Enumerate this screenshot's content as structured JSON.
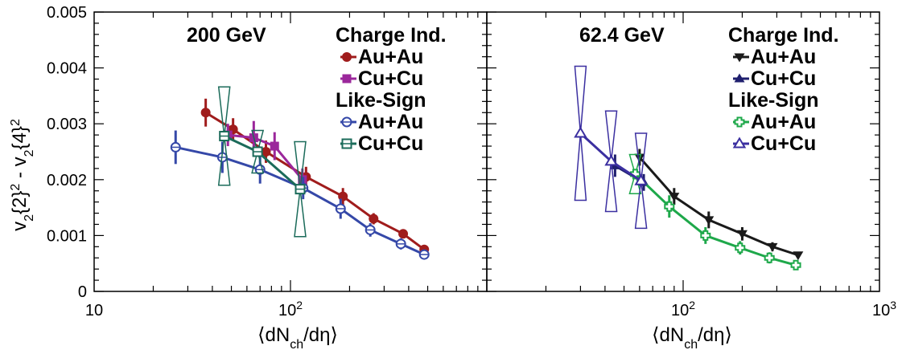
{
  "figure": {
    "ylabel": "v2{2}^2 - v2{4}^2",
    "xlabel": "⟨dNch/dη⟩"
  },
  "colors": {
    "auau_200": "#a01c1c",
    "cucu_200": "#9b279b",
    "auau_ls_200": "#3548a8",
    "cucu_ls_200": "#1b6b5a",
    "auau_624": "#1a1a1a",
    "cucu_624": "#1f1f6e",
    "auau_ls_624": "#1ea84a",
    "cucu_ls_624": "#3b2fa0"
  },
  "chart_data": [
    {
      "type": "line",
      "title": "200 GeV",
      "x_scale": "log",
      "xlim": [
        10,
        1000
      ],
      "ylim": [
        0,
        0.005
      ],
      "y_ticks": [
        "0",
        "0.001",
        "0.002",
        "0.003",
        "0.004",
        "0.005"
      ],
      "x_ticks": [
        {
          "label": "10",
          "value": 10
        },
        {
          "label": "10^2",
          "value": 100
        }
      ],
      "legend_position": "top-right",
      "legend_groups": [
        {
          "title": "Charge Ind.",
          "entries": [
            "Au+Au",
            "Cu+Cu"
          ]
        },
        {
          "title": "Like-Sign",
          "entries": [
            "Au+Au",
            "Cu+Cu"
          ]
        }
      ],
      "series": [
        {
          "name": "Au+Au",
          "group": "Charge Ind.",
          "color_key": "auau_200",
          "marker": "circle-filled",
          "x": [
            37,
            51,
            75,
            120,
            185,
            265,
            375,
            480
          ],
          "y": [
            0.0032,
            0.0029,
            0.0025,
            0.00205,
            0.0017,
            0.0013,
            0.00103,
            0.00075
          ],
          "err": [
            0.00025,
            0.0002,
            0.0002,
            0.00018,
            0.00015,
            0.0001,
            8e-05,
            5e-05
          ]
        },
        {
          "name": "Cu+Cu",
          "group": "Charge Ind.",
          "color_key": "cucu_200",
          "marker": "square-filled",
          "x": [
            48,
            65,
            83,
            115
          ],
          "y": [
            0.0028,
            0.00275,
            0.0026,
            0.002
          ],
          "err": [
            0.0002,
            0.0003,
            0.00025,
            0.0002
          ]
        },
        {
          "name": "Au+Au",
          "group": "Like-Sign",
          "color_key": "auau_ls_200",
          "marker": "circle-open",
          "x": [
            26,
            45,
            70,
            116,
            180,
            255,
            365,
            480
          ],
          "y": [
            0.00258,
            0.0024,
            0.00218,
            0.00185,
            0.00148,
            0.0011,
            0.00085,
            0.00066
          ],
          "err": [
            0.0003,
            0.00028,
            0.00025,
            0.0002,
            0.00018,
            0.00012,
            0.0001,
            5e-05
          ]
        },
        {
          "name": "Cu+Cu",
          "group": "Like-Sign",
          "color_key": "cucu_ls_200",
          "marker": "square-open",
          "x": [
            46,
            68,
            112
          ],
          "y": [
            0.00278,
            0.0025,
            0.00183
          ],
          "err": [
            0.00088,
            0.00038,
            0.00085
          ]
        }
      ]
    },
    {
      "type": "line",
      "title": "62.4 GeV",
      "x_scale": "log",
      "xlim": [
        10,
        1000
      ],
      "ylim": [
        0,
        0.005
      ],
      "x_ticks": [
        {
          "label": "10^2",
          "value": 100
        },
        {
          "label": "10^3",
          "value": 1000
        }
      ],
      "legend_position": "top-right",
      "legend_groups": [
        {
          "title": "Charge Ind.",
          "entries": [
            "Au+Au",
            "Cu+Cu"
          ]
        },
        {
          "title": "Like-Sign",
          "entries": [
            "Au+Au",
            "Cu+Cu"
          ]
        }
      ],
      "series": [
        {
          "name": "Au+Au",
          "group": "Charge Ind.",
          "color_key": "auau_624",
          "marker": "triangle-down-filled",
          "x": [
            60,
            90,
            135,
            200,
            285,
            385
          ],
          "y": [
            0.0024,
            0.0017,
            0.00128,
            0.00103,
            0.0008,
            0.00065
          ],
          "err": [
            0.00015,
            0.00015,
            0.00015,
            0.00012,
            8e-05,
            5e-05
          ]
        },
        {
          "name": "Cu+Cu",
          "group": "Charge Ind.",
          "color_key": "cucu_624",
          "marker": "triangle-up-filled",
          "x": [
            45,
            63
          ],
          "y": [
            0.00225,
            0.00195
          ],
          "err": [
            0.0002,
            0.00015
          ]
        },
        {
          "name": "Au+Au",
          "group": "Like-Sign",
          "color_key": "auau_ls_624",
          "marker": "cross-open",
          "x": [
            57,
            85,
            130,
            195,
            275,
            375
          ],
          "y": [
            0.0021,
            0.00152,
            0.001,
            0.00078,
            0.0006,
            0.00047
          ],
          "err": [
            0.00035,
            0.0002,
            0.00015,
            0.00012,
            0.0001,
            6e-05
          ]
        },
        {
          "name": "Cu+Cu",
          "group": "Like-Sign",
          "color_key": "cucu_ls_624",
          "marker": "triangle-up-open",
          "x": [
            30,
            43,
            61
          ],
          "y": [
            0.00283,
            0.00233,
            0.00198
          ],
          "err": [
            0.0012,
            0.0009,
            0.00085
          ]
        }
      ]
    }
  ]
}
